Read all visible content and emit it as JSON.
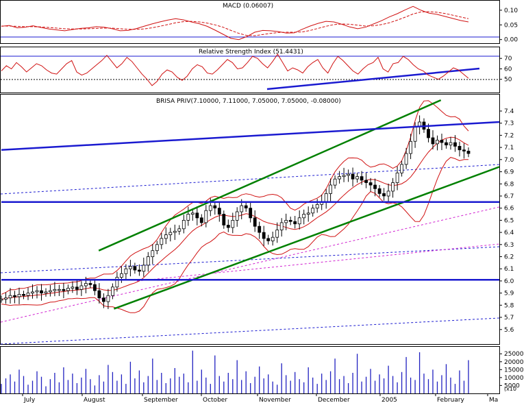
{
  "chart_data": [
    {
      "panel": "macd",
      "type": "line",
      "title": "MACD (0.06007)",
      "ylim": [
        -0.01,
        0.13
      ],
      "yticks": [
        "0.10",
        "0.05",
        "0.00"
      ],
      "ytick_values": [
        0.1,
        0.05,
        0.0
      ],
      "series": [
        {
          "values": [
            0.045,
            0.048,
            0.04,
            0.042,
            0.047,
            0.041,
            0.036,
            0.033,
            0.03,
            0.034,
            0.038,
            0.04,
            0.044,
            0.042,
            0.037,
            0.03,
            0.031,
            0.037,
            0.045,
            0.053,
            0.06,
            0.066,
            0.071,
            0.067,
            0.06,
            0.054,
            0.045,
            0.032,
            0.018,
            0.004,
            0.0,
            0.01,
            0.025,
            0.031,
            0.03,
            0.027,
            0.022,
            0.023,
            0.035,
            0.046,
            0.055,
            0.062,
            0.06,
            0.052,
            0.043,
            0.037,
            0.042,
            0.053,
            0.064,
            0.077,
            0.088,
            0.101,
            0.113,
            0.1,
            0.09,
            0.086,
            0.079,
            0.072,
            0.065,
            0.06
          ]
        },
        {
          "values": [
            0.046,
            0.046,
            0.045,
            0.044,
            0.044,
            0.043,
            0.041,
            0.039,
            0.037,
            0.036,
            0.036,
            0.037,
            0.038,
            0.039,
            0.039,
            0.037,
            0.035,
            0.035,
            0.036,
            0.04,
            0.045,
            0.051,
            0.057,
            0.061,
            0.062,
            0.06,
            0.056,
            0.05,
            0.042,
            0.031,
            0.021,
            0.014,
            0.013,
            0.017,
            0.021,
            0.024,
            0.025,
            0.025,
            0.026,
            0.031,
            0.038,
            0.045,
            0.051,
            0.053,
            0.052,
            0.049,
            0.046,
            0.047,
            0.051,
            0.057,
            0.066,
            0.076,
            0.087,
            0.094,
            0.095,
            0.093,
            0.089,
            0.083,
            0.077,
            0.071
          ]
        }
      ]
    },
    {
      "panel": "rsi",
      "type": "line",
      "title": "Relative Strength Index (51.4431)",
      "ylim": [
        38,
        80
      ],
      "yticks": [
        "70",
        "60",
        "50"
      ],
      "ytick_values": [
        70,
        60,
        50
      ],
      "series": [
        {
          "values": [
            58,
            63,
            60,
            66,
            62,
            57,
            61,
            65,
            63,
            59,
            56,
            55,
            60,
            65,
            68,
            57,
            54,
            56,
            60,
            64,
            68,
            73,
            67,
            61,
            65,
            71,
            67,
            61,
            55,
            50,
            44,
            48,
            55,
            59,
            57,
            52,
            49,
            53,
            60,
            64,
            62,
            56,
            55,
            59,
            64,
            69,
            66,
            60,
            61,
            66,
            72,
            70,
            65,
            61,
            67,
            74,
            66,
            58,
            61,
            59,
            56,
            62,
            66,
            69,
            61,
            56,
            65,
            72,
            68,
            63,
            58,
            55,
            60,
            64,
            66,
            71,
            60,
            57,
            65,
            66,
            72,
            69,
            64,
            60,
            58,
            54,
            52,
            50,
            53,
            57,
            61,
            59,
            55,
            51
          ]
        }
      ]
    },
    {
      "panel": "price",
      "type": "ohlc",
      "title": "BRISA PRIV(7.10000, 7.11000, 7.05000, 7.05000, -0.08000)",
      "ylim": [
        5.48,
        7.53
      ],
      "yticks": [
        "7.4",
        "7.3",
        "7.2",
        "7.1",
        "7.0",
        "6.9",
        "6.8",
        "6.7",
        "6.6",
        "6.5",
        "6.4",
        "6.3",
        "6.2",
        "6.1",
        "6.0",
        "5.9",
        "5.8",
        "5.7",
        "5.6"
      ],
      "ytick_values": [
        7.4,
        7.3,
        7.2,
        7.1,
        7.0,
        6.9,
        6.8,
        6.7,
        6.6,
        6.5,
        6.4,
        6.3,
        6.2,
        6.1,
        6.0,
        5.9,
        5.8,
        5.7,
        5.6
      ],
      "xlabels": [
        "July",
        "August",
        "September",
        "October",
        "November",
        "December",
        "2005",
        "February",
        "Ma"
      ],
      "closes": [
        5.85,
        5.86,
        5.88,
        5.87,
        5.89,
        5.88,
        5.9,
        5.91,
        5.92,
        5.9,
        5.91,
        5.92,
        5.93,
        5.93,
        5.92,
        5.94,
        5.95,
        5.93,
        5.96,
        5.98,
        5.97,
        5.92,
        5.86,
        5.83,
        5.88,
        5.95,
        6.03,
        6.06,
        6.1,
        6.12,
        6.09,
        6.08,
        6.13,
        6.2,
        6.25,
        6.3,
        6.35,
        6.38,
        6.4,
        6.41,
        6.43,
        6.5,
        6.55,
        6.56,
        6.52,
        6.48,
        6.58,
        6.62,
        6.6,
        6.55,
        6.46,
        6.44,
        6.5,
        6.57,
        6.62,
        6.6,
        6.52,
        6.45,
        6.4,
        6.35,
        6.33,
        6.36,
        6.42,
        6.48,
        6.5,
        6.49,
        6.47,
        6.52,
        6.55,
        6.56,
        6.6,
        6.63,
        6.65,
        6.72,
        6.79,
        6.84,
        6.86,
        6.87,
        6.88,
        6.84,
        6.86,
        6.83,
        6.81,
        6.79,
        6.76,
        6.72,
        6.7,
        6.74,
        6.81,
        6.89,
        6.96,
        7.05,
        7.15,
        7.27,
        7.31,
        7.25,
        7.18,
        7.13,
        7.16,
        7.14,
        7.12,
        7.14,
        7.11,
        7.08,
        7.07,
        7.05
      ],
      "lines": [
        {
          "name": "upper channel",
          "color": "#008000",
          "from": [
            45,
            6.25
          ],
          "to": [
            203,
            7.49
          ]
        },
        {
          "name": "lower channel",
          "color": "#008000",
          "from": [
            52,
            5.77
          ],
          "to": [
            230,
            6.94
          ]
        },
        {
          "name": "long trend",
          "color": "#1a1ad0",
          "from": [
            0,
            7.08
          ],
          "to": [
            230,
            7.31
          ]
        },
        {
          "name": "horizontal 6.65",
          "color": "#1a1ad0",
          "from": [
            0,
            6.65
          ],
          "to": [
            230,
            6.65
          ]
        },
        {
          "name": "horizontal 6.01",
          "color": "#1a1ad0",
          "from": [
            0,
            6.01
          ],
          "to": [
            230,
            6.01
          ]
        }
      ]
    },
    {
      "panel": "volume",
      "type": "bar",
      "yticks": [
        "25000",
        "20000",
        "15000",
        "10000",
        "5000"
      ],
      "ytick_values": [
        25000,
        20000,
        15000,
        10000,
        5000
      ],
      "ylim": [
        0,
        29000
      ],
      "values": [
        6000,
        9500,
        12000,
        7500,
        15000,
        11000,
        5500,
        8000,
        14000,
        10500,
        4500,
        9000,
        13000,
        7000,
        16500,
        8500,
        12500,
        6500,
        10000,
        15500,
        9000,
        5000,
        11500,
        7500,
        18000,
        13500,
        8000,
        12000,
        6000,
        20000,
        9500,
        14500,
        7000,
        11000,
        22000,
        8500,
        13000,
        6500,
        9500,
        16000,
        10500,
        12500,
        7000,
        27000,
        8000,
        15000,
        10000,
        6000,
        24000,
        11000,
        7500,
        13000,
        9000,
        21000,
        8500,
        14000,
        6500,
        10500,
        17000,
        9500,
        12000,
        7500,
        5500,
        19000,
        11500,
        8000,
        13500,
        9000,
        7000,
        16500,
        10000,
        6000,
        12500,
        8500,
        14000,
        22000,
        9000,
        11000,
        6500,
        13000,
        25000,
        7500,
        10500,
        15500,
        8000,
        12000,
        9500,
        17500,
        11000,
        7000,
        13500,
        23000,
        10000,
        8500,
        26000,
        12500,
        9000,
        15000,
        7500,
        11500,
        18500,
        10000,
        6000,
        14500,
        8000,
        21000
      ]
    }
  ]
}
